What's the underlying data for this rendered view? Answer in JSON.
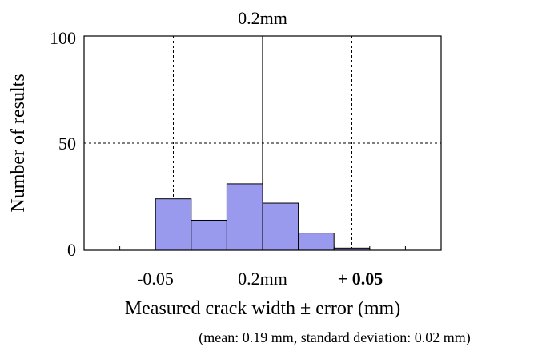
{
  "chart_data": {
    "type": "bar",
    "title": "0.2mm",
    "xlabel": "Measured crack width ± error (mm)",
    "ylabel": "Number of results",
    "note": "(mean: 0.19 mm, standard deviation: 0.02 mm)",
    "x_tick_labels": [
      "-0.05",
      "0.2mm",
      "+ 0.05"
    ],
    "y_tick_labels": [
      "0",
      "50",
      "100"
    ],
    "ylim": [
      0,
      100
    ],
    "xlim": [
      -0.1,
      0.1
    ],
    "bin_width": 0.02,
    "bins": [
      {
        "start": -0.1,
        "value": 0
      },
      {
        "start": -0.08,
        "value": 0
      },
      {
        "start": -0.06,
        "value": 24
      },
      {
        "start": -0.04,
        "value": 14
      },
      {
        "start": -0.02,
        "value": 31
      },
      {
        "start": 0.0,
        "value": 22
      },
      {
        "start": 0.02,
        "value": 8
      },
      {
        "start": 0.04,
        "value": 1
      },
      {
        "start": 0.06,
        "value": 0
      },
      {
        "start": 0.08,
        "value": 0
      }
    ],
    "bar_color": "#9999ee",
    "grid": true
  }
}
